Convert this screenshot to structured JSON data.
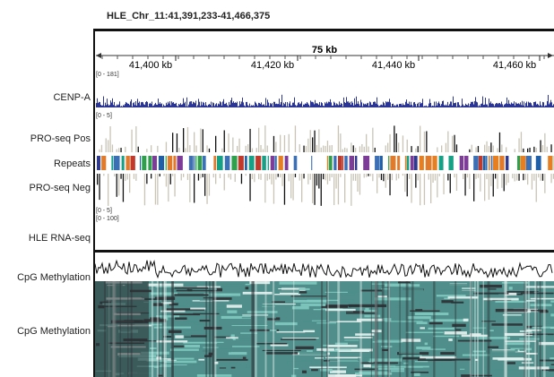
{
  "locus": "HLE_Chr_11:41,391,233-41,466,375",
  "scale": {
    "span_label": "75 kb",
    "ticks": [
      "41,400 kb",
      "41,420 kb",
      "41,440 kb",
      "41,460 kb"
    ]
  },
  "tracks": [
    {
      "id": "cenpa",
      "label": "CENP-A",
      "range": "[0 - 181]",
      "color": "#2a3596"
    },
    {
      "id": "proseq_pos",
      "label": "PRO-seq Pos",
      "range": "[0 - 5]",
      "color": "#c8c4b6"
    },
    {
      "id": "repeats",
      "label": "Repeats",
      "colors": [
        "#2e9f4a",
        "#e27a2c",
        "#3b6fb6",
        "#2f3a8f",
        "#c0392b",
        "#7d3c98",
        "#16a085",
        "#e67e22",
        "#1f5fa8"
      ]
    },
    {
      "id": "proseq_neg",
      "label": "PRO-seq Neg",
      "range": "[0 - 5]",
      "color": "#c8c4b6"
    },
    {
      "id": "rnaseq",
      "label": "HLE RNA-seq",
      "range": "[0 - 100]"
    },
    {
      "id": "cpg_line",
      "label": "CpG Methylation"
    },
    {
      "id": "cpg_heat",
      "label": "CpG Methylation",
      "colors": [
        "#2c2f33",
        "#4f8e8a",
        "#7fc9c0",
        "#e8f3f1"
      ]
    }
  ],
  "accent": "#000000"
}
